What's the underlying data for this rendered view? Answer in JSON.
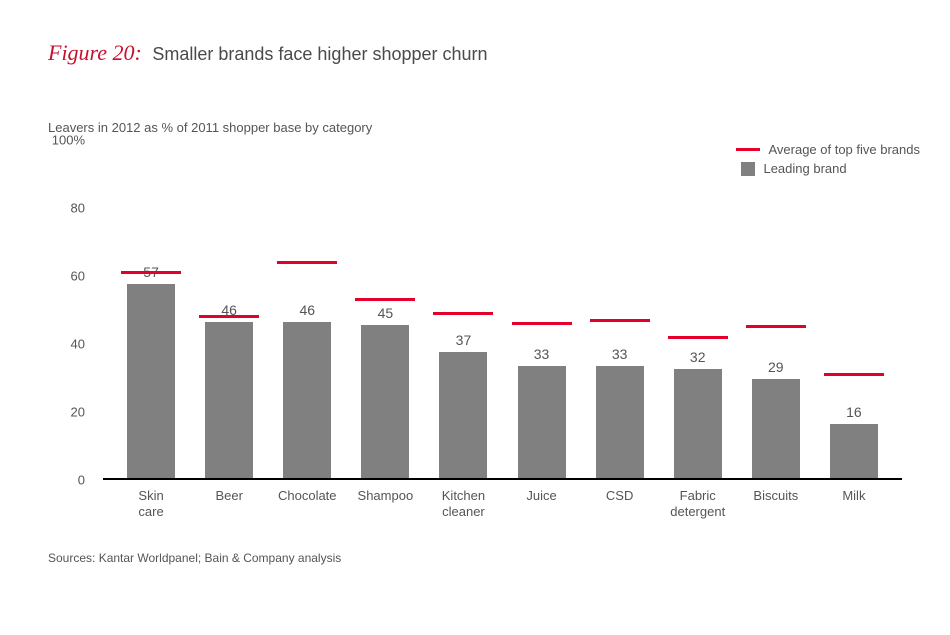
{
  "figure": {
    "label": "Figure 20:",
    "title": "Smaller brands face higher shopper churn",
    "subtitle": "Leavers in 2012 as % of 2011 shopper base by category"
  },
  "chart": {
    "type": "bar",
    "ylim": [
      0,
      100
    ],
    "yticks": [
      0,
      20,
      40,
      60,
      80
    ],
    "ytick_top_label": "100%",
    "ytick_labels": [
      "0",
      "20",
      "40",
      "60",
      "80",
      "100%"
    ],
    "bar_color": "#808080",
    "avg_line_color": "#e4002b",
    "axis_color": "#000000",
    "background_color": "#ffffff",
    "text_color": "#555555",
    "label_fontsize": 13,
    "value_fontsize": 14,
    "categories": [
      "Skin care",
      "Beer",
      "Chocolate",
      "Shampoo",
      "Kitchen cleaner",
      "Juice",
      "CSD",
      "Fabric detergent",
      "Biscuits",
      "Milk"
    ],
    "bar_values": [
      57,
      46,
      46,
      45,
      37,
      33,
      33,
      32,
      29,
      16
    ],
    "avg_values": [
      60,
      47,
      63,
      52,
      48,
      45,
      46,
      41,
      44,
      30
    ]
  },
  "legend": {
    "avg_label": "Average of top five brands",
    "bar_label": "Leading brand"
  },
  "sources": "Sources: Kantar Worldpanel; Bain & Company analysis"
}
